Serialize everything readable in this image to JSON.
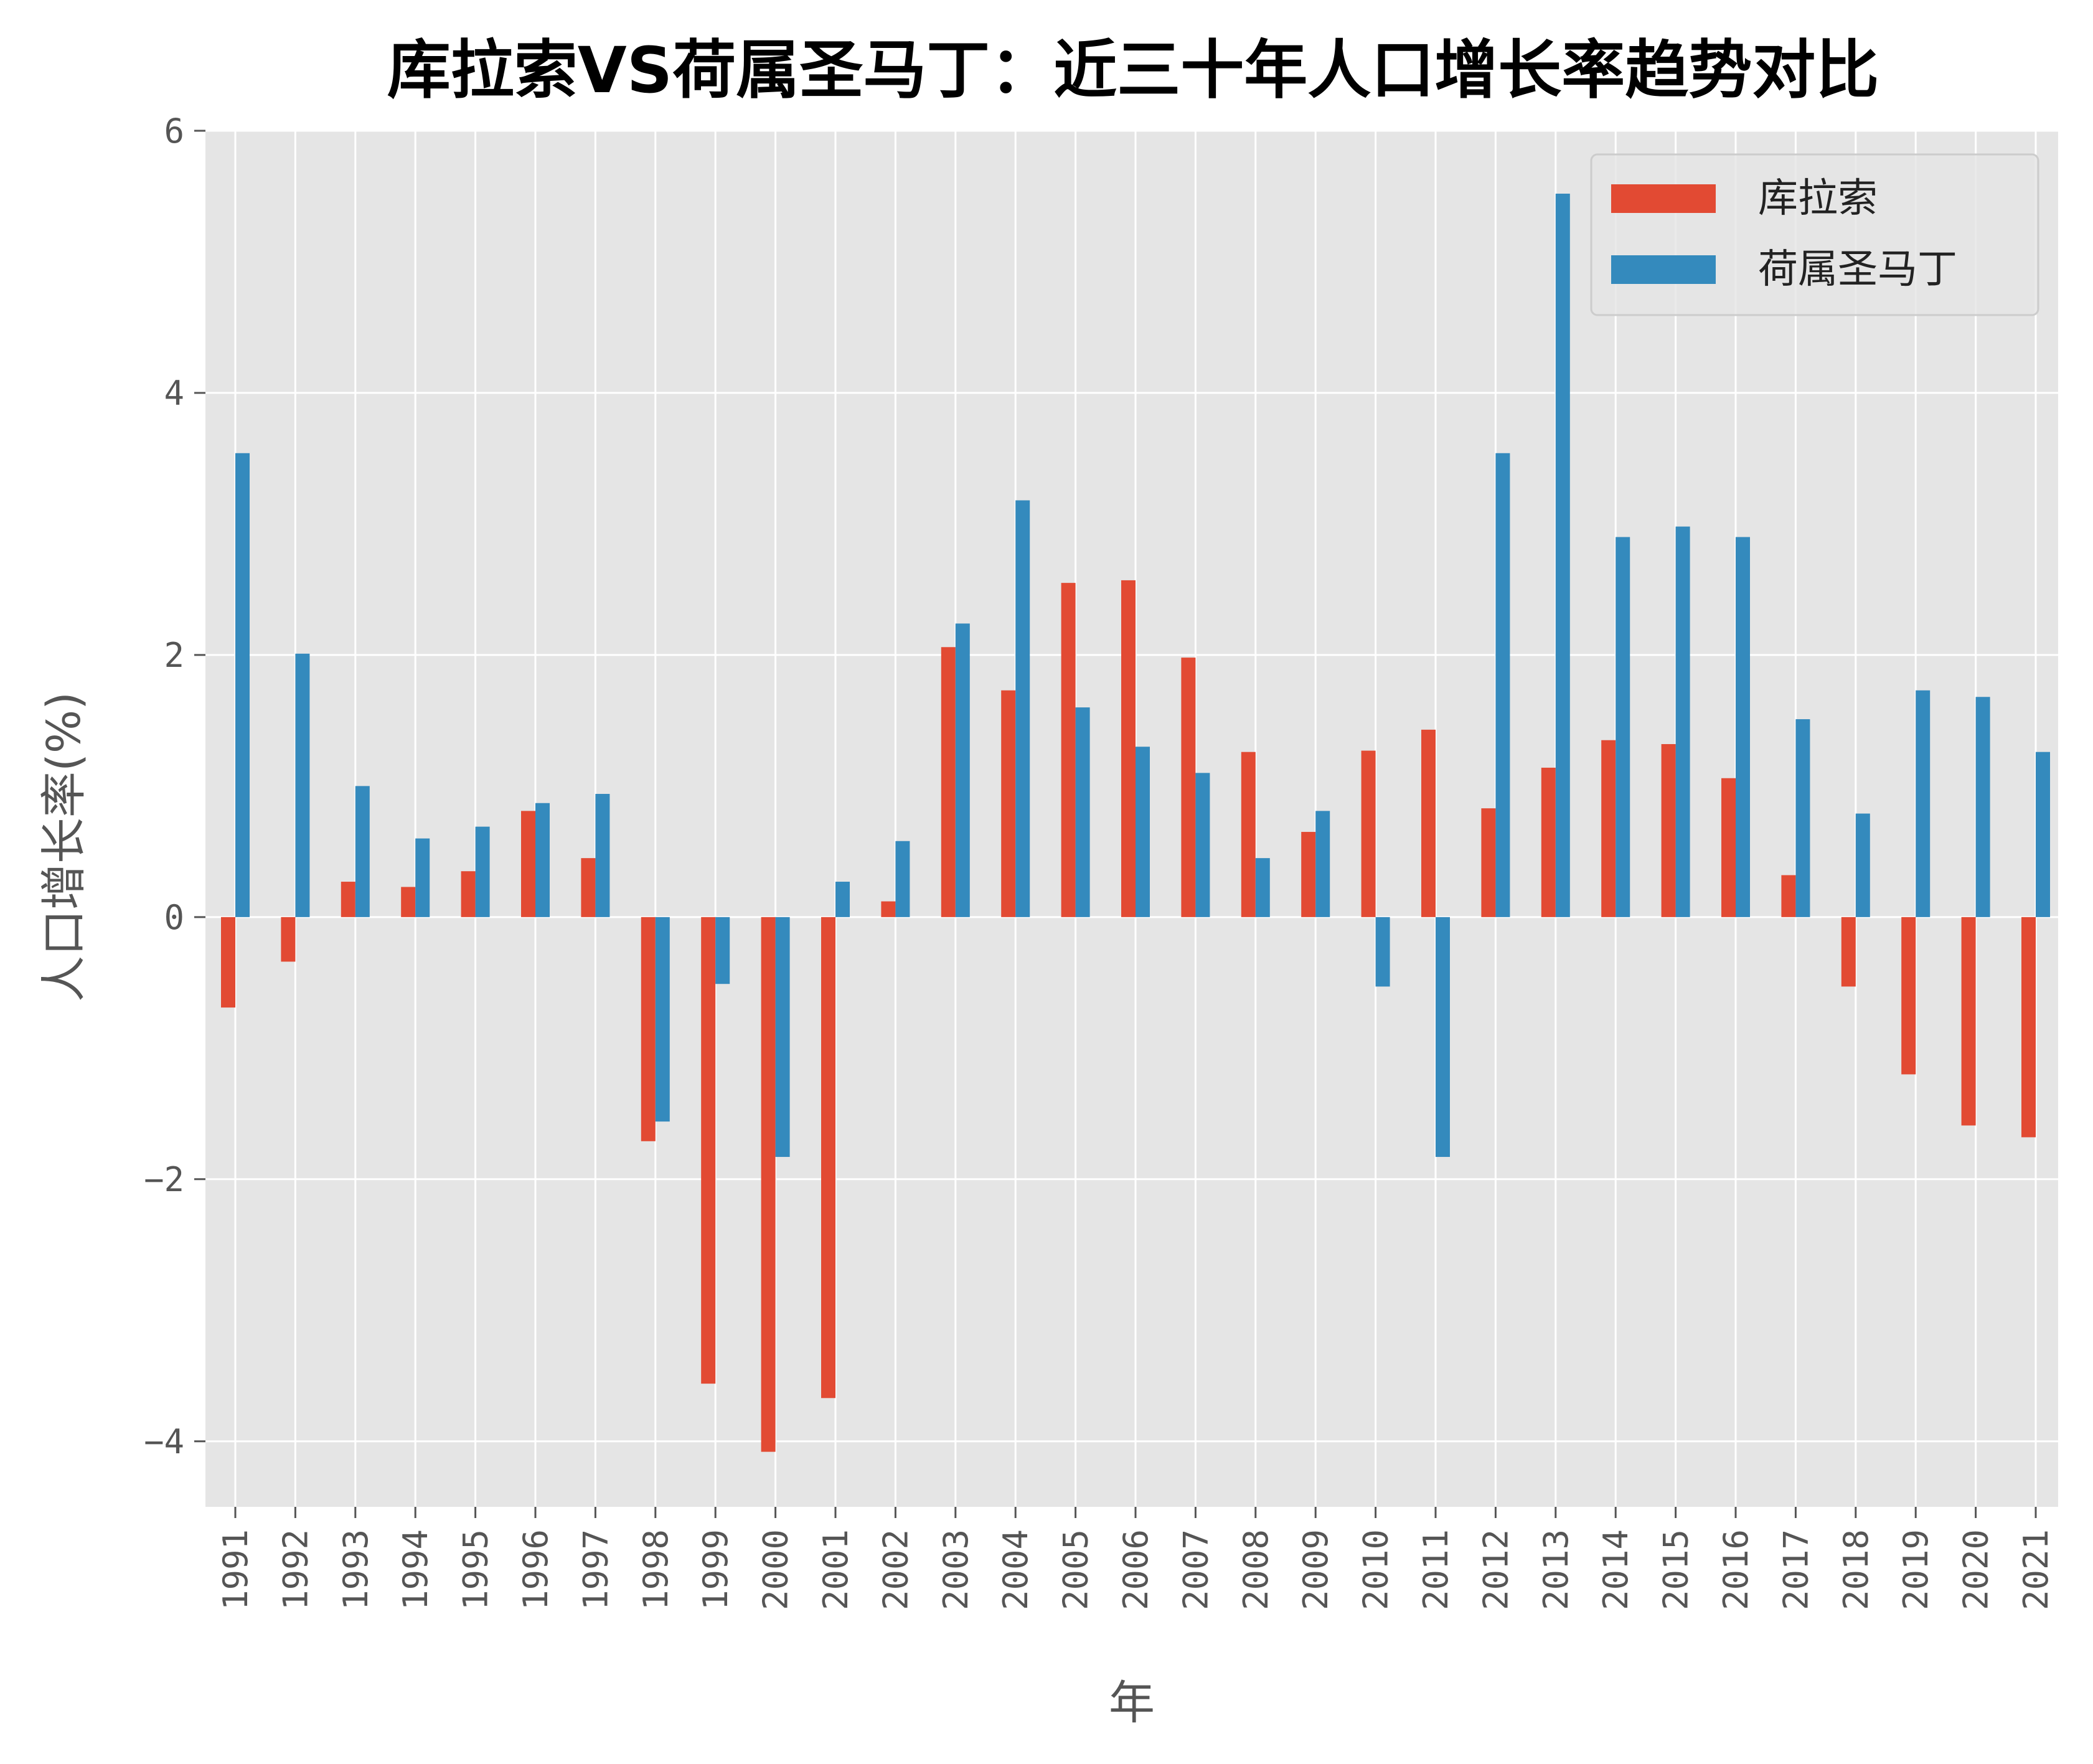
{
  "chart_data": {
    "type": "bar",
    "title": "库拉索VS荷属圣马丁：近三十年人口增长率趋势对比",
    "xlabel": "年",
    "ylabel": "人口增长率(%)",
    "ylim": [
      -4.5,
      6
    ],
    "yticks": [
      -4,
      -2,
      0,
      2,
      4,
      6
    ],
    "ytick_labels": [
      "−4",
      "−2",
      "0",
      "2",
      "4",
      "6"
    ],
    "grid": true,
    "legend_position": "top-right",
    "categories": [
      "1991",
      "1992",
      "1993",
      "1994",
      "1995",
      "1996",
      "1997",
      "1998",
      "1999",
      "2000",
      "2001",
      "2002",
      "2003",
      "2004",
      "2005",
      "2006",
      "2007",
      "2008",
      "2009",
      "2010",
      "2011",
      "2012",
      "2013",
      "2014",
      "2015",
      "2016",
      "2017",
      "2018",
      "2019",
      "2020",
      "2021"
    ],
    "series": [
      {
        "name": "库拉索",
        "color": "#E24A33",
        "values": [
          -0.69,
          -0.34,
          0.27,
          0.23,
          0.35,
          0.81,
          0.45,
          -1.71,
          -3.56,
          -4.08,
          -3.67,
          0.12,
          2.06,
          1.73,
          2.55,
          2.57,
          1.98,
          1.26,
          0.65,
          1.27,
          1.43,
          0.83,
          1.14,
          1.35,
          1.32,
          1.06,
          0.32,
          -0.53,
          -1.2,
          -1.59,
          -1.68
        ]
      },
      {
        "name": "荷属圣马丁",
        "color": "#348ABD",
        "values": [
          3.54,
          2.01,
          1.0,
          0.6,
          0.69,
          0.87,
          0.94,
          -1.56,
          -0.51,
          -1.83,
          0.27,
          0.58,
          2.24,
          3.18,
          1.6,
          1.3,
          1.1,
          0.45,
          0.81,
          -0.53,
          -1.83,
          3.54,
          5.52,
          2.9,
          2.98,
          2.9,
          1.51,
          0.79,
          1.73,
          1.68,
          1.26
        ]
      }
    ]
  }
}
